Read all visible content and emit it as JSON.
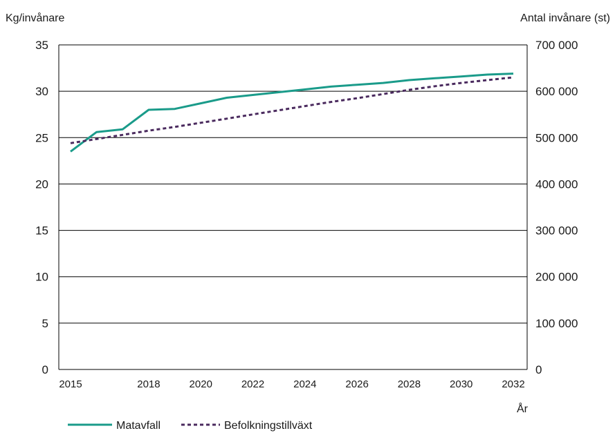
{
  "chart_data": {
    "type": "line",
    "title": "",
    "ylabel_left": "Kg/invånare",
    "ylabel_right": "Antal invånare (st)",
    "xlabel": "År",
    "x_ticks": [
      "2015",
      "2018",
      "2020",
      "2022",
      "2024",
      "2026",
      "2028",
      "2030",
      "2032"
    ],
    "y_left_ticks": [
      "0",
      "5",
      "10",
      "15",
      "20",
      "25",
      "30",
      "35"
    ],
    "y_right_ticks": [
      "0",
      "100 000",
      "200 000",
      "300 000",
      "400 000",
      "500 000",
      "600 000",
      "700 000"
    ],
    "xlim": [
      2015,
      2032
    ],
    "ylim_left": [
      0,
      35
    ],
    "ylim_right": [
      0,
      700000
    ],
    "grid": true,
    "legend_position": "bottom-left",
    "series": [
      {
        "name": "Matavfall",
        "axis": "left",
        "color": "#1a9b8a",
        "style": "solid",
        "x": [
          2015,
          2016,
          2017,
          2018,
          2019,
          2020,
          2021,
          2022,
          2023,
          2024,
          2025,
          2026,
          2027,
          2028,
          2029,
          2030,
          2031,
          2032
        ],
        "values": [
          23.5,
          25.6,
          25.9,
          28.0,
          28.1,
          28.7,
          29.3,
          29.6,
          29.9,
          30.2,
          30.5,
          30.7,
          30.9,
          31.2,
          31.4,
          31.6,
          31.8,
          31.9
        ]
      },
      {
        "name": "Befolkningstillväxt",
        "axis": "right",
        "color": "#4a2a5e",
        "style": "dashed",
        "x": [
          2015,
          2016,
          2017,
          2018,
          2019,
          2020,
          2021,
          2022,
          2023,
          2024,
          2025,
          2026,
          2027,
          2028,
          2029,
          2030,
          2031,
          2032
        ],
        "values": [
          488000,
          497000,
          506000,
          515000,
          523000,
          532000,
          541000,
          550000,
          559000,
          568000,
          577000,
          585000,
          594000,
          603000,
          611000,
          618000,
          624000,
          630000
        ]
      }
    ]
  }
}
